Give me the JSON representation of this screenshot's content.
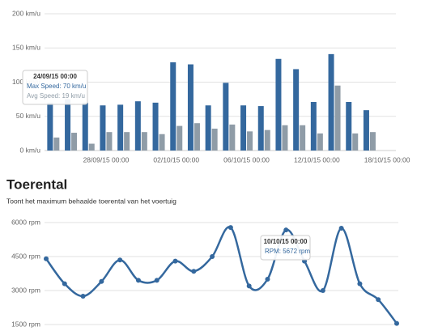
{
  "chart_data": [
    {
      "type": "bar",
      "categories": [
        null,
        null,
        null,
        "28/09/15 00:00",
        null,
        null,
        null,
        "02/10/15 00:00",
        null,
        null,
        null,
        "06/10/15 00:00",
        null,
        null,
        null,
        "12/10/15 00:00",
        null,
        null,
        null,
        "18/10/15 00:00"
      ],
      "series": [
        {
          "color": "#34689e",
          "values": [
            70,
            75,
            70,
            66,
            67,
            72,
            70,
            129,
            126,
            66,
            99,
            66,
            65,
            134,
            119,
            71,
            141,
            71,
            59,
            null
          ]
        },
        {
          "color": "#8f9ca7",
          "values": [
            19,
            26,
            10,
            27,
            27,
            27,
            24,
            36,
            40,
            32,
            38,
            28,
            30,
            37,
            37,
            25,
            95,
            25,
            27,
            null
          ]
        }
      ],
      "ylim": [
        0,
        200
      ],
      "yticks": [
        {
          "value": 0,
          "label": "0 km/u"
        },
        {
          "value": 50,
          "label": "50 km/u"
        },
        {
          "value": 100,
          "label": "100 km/u"
        },
        {
          "value": 150,
          "label": "150 km/u"
        },
        {
          "value": 200,
          "label": "200 km/u"
        }
      ],
      "grid": true,
      "tooltip": {
        "title": "24/09/15 00:00",
        "lines": [
          "Max Speed: 70 km/u",
          "Avg Speed: 19 km/u"
        ]
      }
    },
    {
      "type": "line",
      "title": "Toerental",
      "subtitle": "Toont het maximum behaalde toerental van het voertuig",
      "series": [
        {
          "color": "#34689e",
          "values": [
            4400,
            3300,
            2750,
            3400,
            4350,
            3450,
            3450,
            4300,
            3850,
            4500,
            5780,
            3200,
            3500,
            5672,
            4300,
            3000,
            5750,
            3300,
            2600,
            1550
          ]
        }
      ],
      "ylim": [
        1500,
        6000
      ],
      "yticks": [
        {
          "value": 1500,
          "label": "1500 rpm"
        },
        {
          "value": 3000,
          "label": "3000 rpm"
        },
        {
          "value": 4500,
          "label": "4500 rpm"
        },
        {
          "value": 6000,
          "label": "6000 rpm"
        }
      ],
      "grid": true,
      "tooltip": {
        "title": "10/10/15 00:00",
        "lines": [
          "RPM: 5672 rpm"
        ]
      }
    }
  ]
}
